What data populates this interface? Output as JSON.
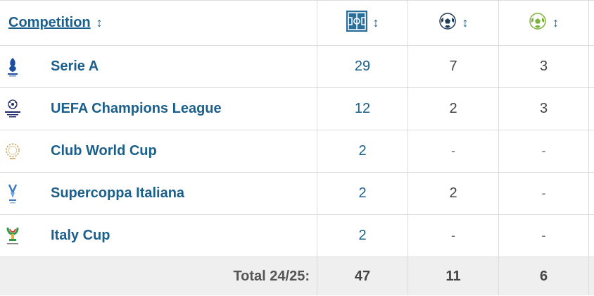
{
  "header": {
    "competition_label": "Competition",
    "sort_glyph": "↕",
    "col_icons": [
      "pitch-icon",
      "ball-icon",
      "green-ball-icon"
    ]
  },
  "rows": [
    {
      "name": "Serie A",
      "logo": "serie-a-logo",
      "appearances": "29",
      "goals": "7",
      "assists": "3"
    },
    {
      "name": "UEFA Champions League",
      "logo": "champions-league-logo",
      "appearances": "12",
      "goals": "2",
      "assists": "3"
    },
    {
      "name": "Club World Cup",
      "logo": "club-world-cup-logo",
      "appearances": "2",
      "goals": "-",
      "assists": "-"
    },
    {
      "name": "Supercoppa Italiana",
      "logo": "supercoppa-logo",
      "appearances": "2",
      "goals": "2",
      "assists": "-"
    },
    {
      "name": "Italy Cup",
      "logo": "italy-cup-logo",
      "appearances": "2",
      "goals": "-",
      "assists": "-"
    }
  ],
  "footer": {
    "label": "Total 24/25:",
    "appearances": "47",
    "goals": "11",
    "assists": "6"
  },
  "colors": {
    "link": "#1b5f8c",
    "border": "#dcdcdc",
    "footer_bg": "#efefef"
  }
}
